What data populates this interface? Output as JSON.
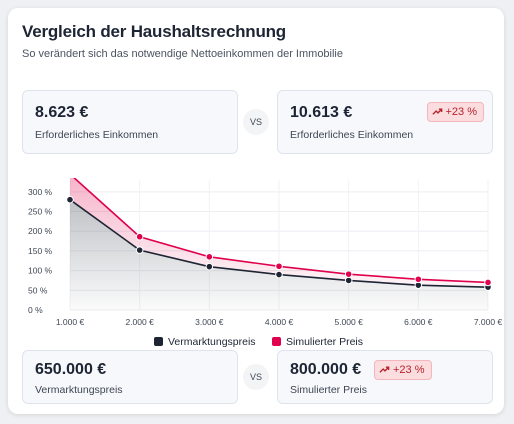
{
  "header": {
    "title": "Vergleich der Haushaltsrechnung",
    "subtitle": "So verändert sich das notwendige Nettoeinkommen der Immobilie"
  },
  "income": {
    "left": {
      "value": "8.623 €",
      "label": "Erforderliches Einkommen"
    },
    "right": {
      "value": "10.613 €",
      "label": "Erforderliches Einkommen",
      "badge": "+23 %"
    },
    "vs": "VS"
  },
  "price": {
    "left": {
      "value": "650.000 €",
      "label": "Vermarktungspreis"
    },
    "right": {
      "value": "800.000 €",
      "label": "Simulierter Preis",
      "badge": "+23 %"
    },
    "vs": "VS"
  },
  "colors": {
    "series1": "#1d2433",
    "series2": "#e0004d",
    "badge_bg": "#fbdcdf",
    "badge_text": "#b4232c"
  },
  "icons": {
    "badge": "trending-up-icon"
  },
  "chart_data": {
    "type": "area",
    "x": [
      1000,
      2000,
      3000,
      4000,
      5000,
      6000,
      7000
    ],
    "x_tick_labels": [
      "1.000 €",
      "2.000 €",
      "3.000 €",
      "4.000 €",
      "5.000 €",
      "6.000 €",
      "7.000 €"
    ],
    "y_tick_labels": [
      "0 %",
      "50 %",
      "100 %",
      "150 %",
      "200 %",
      "250 %",
      "300 %"
    ],
    "y_ticks": [
      0,
      50,
      100,
      150,
      200,
      250,
      300
    ],
    "ylim": [
      0,
      330
    ],
    "grid": true,
    "legend": "bottom",
    "series": [
      {
        "name": "Vermarktungspreis",
        "values": [
          280,
          152,
          110,
          90,
          75,
          63,
          58
        ]
      },
      {
        "name": "Simulierter Preis",
        "values": [
          345,
          186,
          135,
          111,
          91,
          78,
          70
        ]
      }
    ]
  }
}
